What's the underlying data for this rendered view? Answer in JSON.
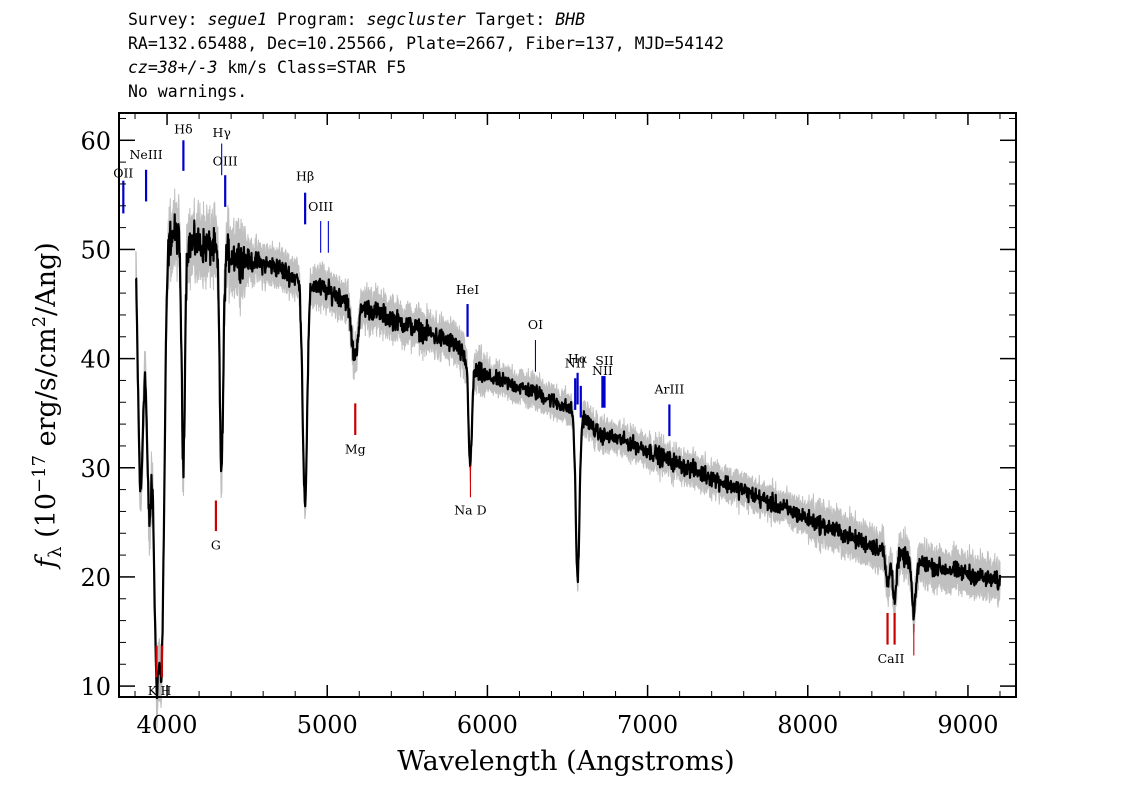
{
  "header": {
    "survey_label": "Survey:",
    "survey": "segue1",
    "program_label": "Program:",
    "program": "segcluster",
    "target_label": "Target:",
    "target": "BHB",
    "line2": "RA=132.65488, Dec=10.25566, Plate=2667, Fiber=137, MJD=54142",
    "cz": "cz=38+/-3",
    "cz_rest": " km/s Class=STAR F5",
    "line4": "No warnings."
  },
  "chart_data": {
    "type": "line",
    "xlabel": "Wavelength (Angstroms)",
    "ylabel_f": "f",
    "ylabel_sub": "λ",
    "ylabel_mid": " (10",
    "ylabel_exp": "−17",
    "ylabel_unit": " erg/s/cm",
    "ylabel_exp2": "2",
    "ylabel_end": "/Ang)",
    "xlim": [
      3700,
      9300
    ],
    "ylim": [
      9,
      62.5
    ],
    "xticks": [
      4000,
      5000,
      6000,
      7000,
      8000,
      9000
    ],
    "xtick_labels": [
      "4000",
      "5000",
      "6000",
      "7000",
      "8000",
      "9000"
    ],
    "yticks": [
      10,
      20,
      30,
      40,
      50,
      60
    ],
    "ytick_labels": [
      "10",
      "20",
      "30",
      "40",
      "50",
      "60"
    ],
    "colors": {
      "flux": "#000000",
      "error_band": "#c0c0c0",
      "emission": "#0000cc",
      "absorption": "#cc0000"
    },
    "continuum": [
      [
        3810,
        51
      ],
      [
        3860,
        49
      ],
      [
        3920,
        49.5
      ],
      [
        3990,
        51
      ],
      [
        4050,
        51.5
      ],
      [
        4100,
        50.5
      ],
      [
        4200,
        50.5
      ],
      [
        4300,
        50
      ],
      [
        4400,
        49.5
      ],
      [
        4500,
        49
      ],
      [
        4600,
        48.7
      ],
      [
        4700,
        48.3
      ],
      [
        4800,
        47.4
      ],
      [
        4900,
        46.8
      ],
      [
        5000,
        46.2
      ],
      [
        5100,
        45.6
      ],
      [
        5200,
        44.9
      ],
      [
        5300,
        44.3
      ],
      [
        5400,
        43.7
      ],
      [
        5500,
        43.1
      ],
      [
        5600,
        42.5
      ],
      [
        5700,
        41.9
      ],
      [
        5800,
        41.3
      ],
      [
        5900,
        39
      ],
      [
        6000,
        38.3
      ],
      [
        6100,
        37.9
      ],
      [
        6200,
        37.4
      ],
      [
        6300,
        36.9
      ],
      [
        6400,
        36.2
      ],
      [
        6500,
        35.5
      ],
      [
        6600,
        34.7
      ],
      [
        6700,
        33
      ],
      [
        6800,
        32.7
      ],
      [
        6900,
        32.2
      ],
      [
        7000,
        31.6
      ],
      [
        7100,
        30.9
      ],
      [
        7200,
        30.3
      ],
      [
        7300,
        29.7
      ],
      [
        7400,
        29.1
      ],
      [
        7500,
        28.5
      ],
      [
        7600,
        27.9
      ],
      [
        7700,
        27.2
      ],
      [
        7800,
        26.6
      ],
      [
        7900,
        26
      ],
      [
        8000,
        25.3
      ],
      [
        8100,
        24.7
      ],
      [
        8200,
        24.1
      ],
      [
        8300,
        23.4
      ],
      [
        8400,
        22.9
      ],
      [
        8500,
        22.3
      ],
      [
        8600,
        21.8
      ],
      [
        8700,
        21.3
      ],
      [
        8800,
        20.9
      ],
      [
        8900,
        20.6
      ],
      [
        9000,
        20.3
      ],
      [
        9100,
        19.9
      ],
      [
        9200,
        19.5
      ]
    ],
    "absorption_dips": [
      [
        3835,
        22,
        16
      ],
      [
        3889,
        23,
        16
      ],
      [
        3933,
        35,
        16
      ],
      [
        3968,
        35,
        16
      ],
      [
        4101,
        20,
        10
      ],
      [
        4340,
        20,
        11
      ],
      [
        4861,
        20,
        14
      ],
      [
        5170,
        5,
        20
      ],
      [
        5893,
        9,
        10
      ],
      [
        6563,
        15,
        12
      ],
      [
        8498,
        3,
        12
      ],
      [
        8542,
        4,
        12
      ],
      [
        8662,
        5,
        12
      ]
    ],
    "emission_lines": [
      {
        "label": "OII",
        "wave": 3727,
        "y1": 53.3,
        "y2": 56.3,
        "label_y": 56.6,
        "weight": "bold"
      },
      {
        "label": "NeIII",
        "wave": 3869,
        "y1": 54.4,
        "y2": 57.3,
        "label_y": 58.3,
        "weight": "bold"
      },
      {
        "label": "Hδ",
        "wave": 4102,
        "y1": 57.2,
        "y2": 60.0,
        "label_y": 60.6,
        "weight": "bold"
      },
      {
        "label": "Hγ",
        "wave": 4341,
        "y1": 56.8,
        "y2": 59.7,
        "label_y": 60.3,
        "weight": "thin"
      },
      {
        "label": "OIII",
        "wave": 4363,
        "y1": 53.9,
        "y2": 56.8,
        "label_y": 57.7,
        "weight": "bold"
      },
      {
        "label": "Hβ",
        "wave": 4862,
        "y1": 52.3,
        "y2": 55.2,
        "label_y": 56.3,
        "weight": "bold"
      },
      {
        "label": "OIII",
        "wave": 4959,
        "y1": 49.7,
        "y2": 52.6,
        "label_y": 53.5,
        "weight": "thin"
      },
      {
        "label": "",
        "wave": 5007,
        "y1": 49.7,
        "y2": 52.6,
        "label_y": 0,
        "weight": "thin"
      },
      {
        "label": "HeI",
        "wave": 5876,
        "y1": 42.0,
        "y2": 45.0,
        "label_y": 45.9,
        "weight": "bold"
      },
      {
        "label": "OI",
        "wave": 6300,
        "y1": 38.8,
        "y2": 41.7,
        "label_y": 42.7,
        "weight": "thin"
      },
      {
        "label": "NII",
        "wave": 6548,
        "y1": 35.3,
        "y2": 38.2,
        "label_y": 39.2,
        "weight": "bold"
      },
      {
        "label": "Hα",
        "wave": 6563,
        "y1": 35.8,
        "y2": 38.7,
        "label_y": 39.6,
        "weight": "bold"
      },
      {
        "label": "",
        "wave": 6583,
        "y1": 34.6,
        "y2": 37.5,
        "label_y": 0,
        "weight": "bold"
      },
      {
        "label": "NII",
        "wave": 6718,
        "y1": 35.5,
        "y2": 38.4,
        "label_y": 38.5,
        "weight": "bold"
      },
      {
        "label": "SII",
        "wave": 6731,
        "y1": 35.5,
        "y2": 38.4,
        "label_y": 39.4,
        "weight": "bold"
      },
      {
        "label": "ArIII",
        "wave": 7136,
        "y1": 32.9,
        "y2": 35.8,
        "label_y": 36.8,
        "weight": "bold"
      }
    ],
    "absorption_lines": [
      {
        "label": "K",
        "wave": 3934,
        "y1": 10.8,
        "y2": 13.7,
        "label_y": 9.2,
        "weight": "bold"
      },
      {
        "label": "H",
        "wave": 3968,
        "y1": 10.8,
        "y2": 13.7,
        "label_y": 9.2,
        "weight": "bold"
      },
      {
        "label": "G",
        "wave": 4305,
        "y1": 24.2,
        "y2": 27.0,
        "label_y": 22.5,
        "weight": "bold"
      },
      {
        "label": "Mg",
        "wave": 5175,
        "y1": 33.0,
        "y2": 35.9,
        "label_y": 31.3,
        "weight": "bold"
      },
      {
        "label": "Na D",
        "wave": 5894,
        "y1": 27.3,
        "y2": 30.2,
        "label_y": 25.7,
        "weight": "thin"
      },
      {
        "label": "CaII",
        "wave": 8498,
        "y1": 13.8,
        "y2": 16.7,
        "label_y": 12.1,
        "weight": "bold"
      },
      {
        "label": "",
        "wave": 8542,
        "y1": 13.8,
        "y2": 16.7,
        "label_y": 0,
        "weight": "bold"
      },
      {
        "label": "",
        "wave": 8662,
        "y1": 12.8,
        "y2": 15.7,
        "label_y": 0,
        "weight": "thin"
      }
    ]
  }
}
